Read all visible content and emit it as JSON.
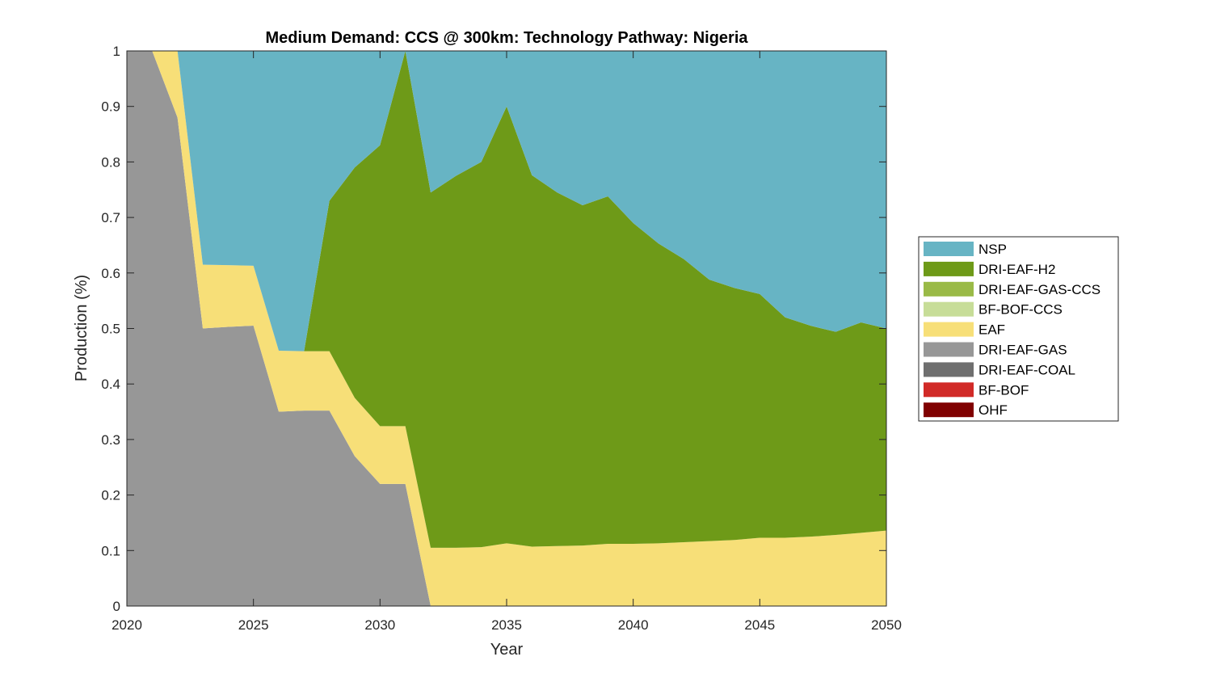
{
  "chart_data": {
    "type": "area",
    "stacked": true,
    "title": "Medium Demand: CCS @ 300km: Technology Pathway: Nigeria",
    "xlabel": "Year",
    "ylabel": "Production (%)",
    "xlim": [
      2020,
      2050
    ],
    "ylim": [
      0,
      1
    ],
    "xticks": [
      "2020",
      "2025",
      "2030",
      "2035",
      "2040",
      "2045",
      "2050"
    ],
    "yticks": [
      "0",
      "0.1",
      "0.2",
      "0.3",
      "0.4",
      "0.5",
      "0.6",
      "0.7",
      "0.8",
      "0.9",
      "1"
    ],
    "grid": false,
    "legend_position": "right",
    "x": [
      2020,
      2021,
      2022,
      2023,
      2024,
      2025,
      2026,
      2027,
      2028,
      2029,
      2030,
      2031,
      2032,
      2033,
      2034,
      2035,
      2036,
      2037,
      2038,
      2039,
      2040,
      2041,
      2042,
      2043,
      2044,
      2045,
      2046,
      2047,
      2048,
      2049,
      2050
    ],
    "series": [
      {
        "name": "OHF",
        "color": "#800000",
        "values": [
          0,
          0,
          0,
          0,
          0,
          0,
          0,
          0,
          0,
          0,
          0,
          0,
          0,
          0,
          0,
          0,
          0,
          0,
          0,
          0,
          0,
          0,
          0,
          0,
          0,
          0,
          0,
          0,
          0,
          0,
          0
        ]
      },
      {
        "name": "BF-BOF",
        "color": "#d12a27",
        "values": [
          0,
          0,
          0,
          0,
          0,
          0,
          0,
          0,
          0,
          0,
          0,
          0,
          0,
          0,
          0,
          0,
          0,
          0,
          0,
          0,
          0,
          0,
          0,
          0,
          0,
          0,
          0,
          0,
          0,
          0,
          0
        ]
      },
      {
        "name": "DRI-EAF-COAL",
        "color": "#6f6f6f",
        "values": [
          0,
          0,
          0,
          0,
          0,
          0,
          0,
          0,
          0,
          0,
          0,
          0,
          0,
          0,
          0,
          0,
          0,
          0,
          0,
          0,
          0,
          0,
          0,
          0,
          0,
          0,
          0,
          0,
          0,
          0,
          0
        ]
      },
      {
        "name": "DRI-EAF-GAS",
        "color": "#979797",
        "values": [
          1,
          1,
          0.88,
          0.5,
          0.503,
          0.505,
          0.35,
          0.352,
          0.352,
          0.27,
          0.22,
          0.22,
          0,
          0,
          0,
          0,
          0,
          0,
          0,
          0,
          0,
          0,
          0,
          0,
          0,
          0,
          0,
          0,
          0,
          0,
          0
        ]
      },
      {
        "name": "EAF",
        "color": "#f7df78",
        "values": [
          0,
          0,
          0.12,
          0.115,
          0.111,
          0.108,
          0.11,
          0.107,
          0.107,
          0.105,
          0.104,
          0.104,
          0.105,
          0.105,
          0.106,
          0.113,
          0.107,
          0.108,
          0.109,
          0.112,
          0.112,
          0.113,
          0.115,
          0.117,
          0.119,
          0.123,
          0.123,
          0.125,
          0.128,
          0.132,
          0.136
        ]
      },
      {
        "name": "BF-BOF-CCS",
        "color": "#c7dd98",
        "values": [
          0,
          0,
          0,
          0,
          0,
          0,
          0,
          0,
          0,
          0,
          0,
          0,
          0,
          0,
          0,
          0,
          0,
          0,
          0,
          0,
          0,
          0,
          0,
          0,
          0,
          0,
          0,
          0,
          0,
          0,
          0
        ]
      },
      {
        "name": "DRI-EAF-GAS-CCS",
        "color": "#9aba47",
        "values": [
          0,
          0,
          0,
          0,
          0,
          0,
          0,
          0,
          0,
          0,
          0,
          0,
          0,
          0,
          0,
          0,
          0,
          0,
          0,
          0,
          0,
          0,
          0,
          0,
          0,
          0,
          0,
          0,
          0,
          0,
          0
        ]
      },
      {
        "name": "DRI-EAF-H2",
        "color": "#6e9a18",
        "values": [
          0,
          0,
          0,
          0,
          0,
          0,
          0,
          0,
          0.271,
          0.415,
          0.506,
          0.676,
          0.64,
          0.67,
          0.694,
          0.787,
          0.669,
          0.637,
          0.613,
          0.626,
          0.578,
          0.54,
          0.51,
          0.471,
          0.454,
          0.439,
          0.397,
          0.38,
          0.366,
          0.379,
          0.364
        ]
      },
      {
        "name": "NSP",
        "color": "#67b4c4",
        "values": [
          0,
          0,
          0,
          0.385,
          0.386,
          0.387,
          0.54,
          0.541,
          0.27,
          0.21,
          0.17,
          0,
          0.255,
          0.225,
          0.2,
          0.1,
          0.224,
          0.255,
          0.278,
          0.262,
          0.31,
          0.347,
          0.375,
          0.412,
          0.427,
          0.438,
          0.48,
          0.495,
          0.506,
          0.489,
          0.5
        ]
      }
    ],
    "legend_order": [
      "NSP",
      "DRI-EAF-H2",
      "DRI-EAF-GAS-CCS",
      "BF-BOF-CCS",
      "EAF",
      "DRI-EAF-GAS",
      "DRI-EAF-COAL",
      "BF-BOF",
      "OHF"
    ]
  }
}
